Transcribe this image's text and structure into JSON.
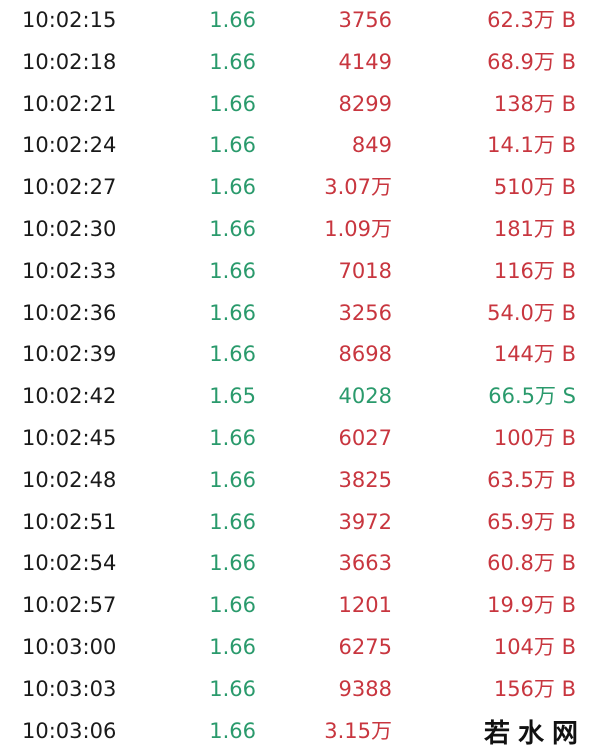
{
  "price_color": "#2a9a6c",
  "rows": [
    {
      "time": "10:02:15",
      "price": "1.66",
      "volume": "3756",
      "amount": "62.3万 B",
      "color": "#c8363f"
    },
    {
      "time": "10:02:18",
      "price": "1.66",
      "volume": "4149",
      "amount": "68.9万 B",
      "color": "#c8363f"
    },
    {
      "time": "10:02:21",
      "price": "1.66",
      "volume": "8299",
      "amount": "138万 B",
      "color": "#c8363f"
    },
    {
      "time": "10:02:24",
      "price": "1.66",
      "volume": "849",
      "amount": "14.1万 B",
      "color": "#c8363f"
    },
    {
      "time": "10:02:27",
      "price": "1.66",
      "volume": "3.07万",
      "amount": "510万 B",
      "color": "#c8363f"
    },
    {
      "time": "10:02:30",
      "price": "1.66",
      "volume": "1.09万",
      "amount": "181万 B",
      "color": "#c8363f"
    },
    {
      "time": "10:02:33",
      "price": "1.66",
      "volume": "7018",
      "amount": "116万 B",
      "color": "#c8363f"
    },
    {
      "time": "10:02:36",
      "price": "1.66",
      "volume": "3256",
      "amount": "54.0万 B",
      "color": "#c8363f"
    },
    {
      "time": "10:02:39",
      "price": "1.66",
      "volume": "8698",
      "amount": "144万 B",
      "color": "#c8363f"
    },
    {
      "time": "10:02:42",
      "price": "1.65",
      "volume": "4028",
      "amount": "66.5万 S",
      "color": "#2a9a6c"
    },
    {
      "time": "10:02:45",
      "price": "1.66",
      "volume": "6027",
      "amount": "100万 B",
      "color": "#c8363f"
    },
    {
      "time": "10:02:48",
      "price": "1.66",
      "volume": "3825",
      "amount": "63.5万 B",
      "color": "#c8363f"
    },
    {
      "time": "10:02:51",
      "price": "1.66",
      "volume": "3972",
      "amount": "65.9万 B",
      "color": "#c8363f"
    },
    {
      "time": "10:02:54",
      "price": "1.66",
      "volume": "3663",
      "amount": "60.8万 B",
      "color": "#c8363f"
    },
    {
      "time": "10:02:57",
      "price": "1.66",
      "volume": "1201",
      "amount": "19.9万 B",
      "color": "#c8363f"
    },
    {
      "time": "10:03:00",
      "price": "1.66",
      "volume": "6275",
      "amount": "104万 B",
      "color": "#c8363f"
    },
    {
      "time": "10:03:03",
      "price": "1.66",
      "volume": "9388",
      "amount": "156万 B",
      "color": "#c8363f"
    },
    {
      "time": "10:03:06",
      "price": "1.66",
      "volume": "3.15万",
      "amount": "",
      "color": "#c8363f"
    }
  ],
  "watermark": "若水网"
}
